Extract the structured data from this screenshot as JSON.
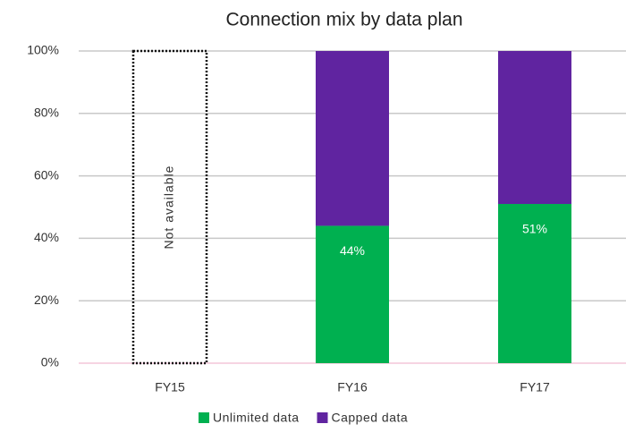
{
  "chart_data": {
    "type": "stacked_bar",
    "title": "Connection mix by data plan",
    "categories": [
      "FY15",
      "FY16",
      "FY17"
    ],
    "series": [
      {
        "name": "Unlimited data",
        "color": "#00b050",
        "values": [
          null,
          44,
          51
        ],
        "value_labels": [
          null,
          "44%",
          "51%"
        ]
      },
      {
        "name": "Capped data",
        "color": "#6024a0",
        "values": [
          null,
          56,
          49
        ]
      }
    ],
    "annotation": "Not available",
    "ylim": [
      0,
      100
    ],
    "yticks": [
      {
        "value": 0,
        "label": "0%"
      },
      {
        "value": 20,
        "label": "20%"
      },
      {
        "value": 40,
        "label": "40%"
      },
      {
        "value": 60,
        "label": "60%"
      },
      {
        "value": 80,
        "label": "80%"
      },
      {
        "value": 100,
        "label": "100%"
      }
    ],
    "grid": true,
    "legend": "bottom"
  }
}
